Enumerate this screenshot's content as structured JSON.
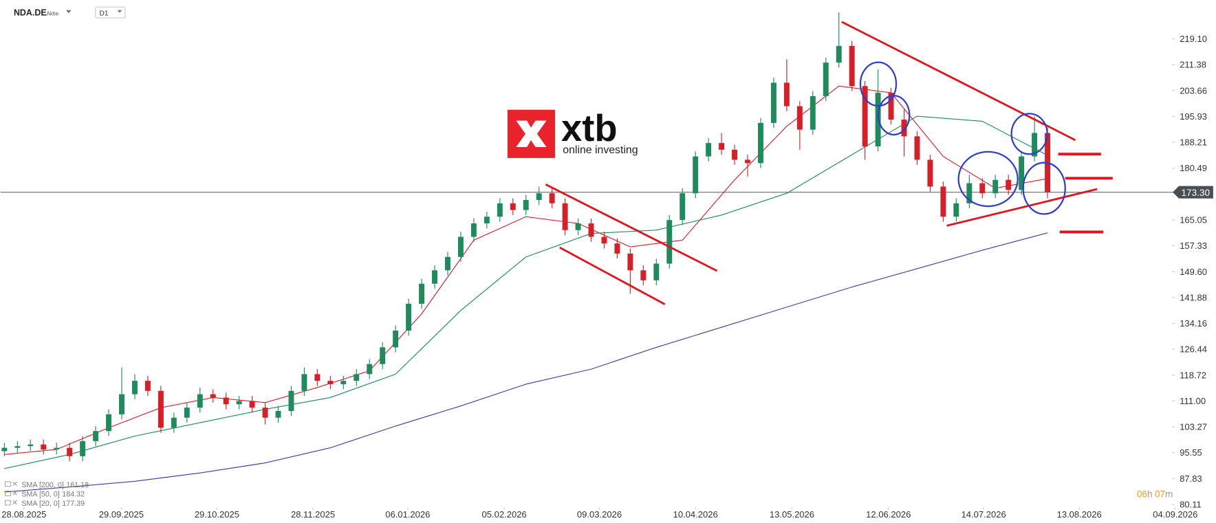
{
  "chart_data": {
    "type": "candlestick",
    "symbol": "NDA.DE",
    "instrument_type": "Aktie",
    "timeframe": "D1",
    "branding": {
      "name": "xtb",
      "tagline": "online investing"
    },
    "countdown": {
      "hours": "06",
      "hours_unit": "h",
      "minutes": "07",
      "minutes_unit": "m"
    },
    "up_color": "#1f8a5b",
    "down_color": "#d81e27",
    "candles": {
      "x": [
        0,
        3,
        6,
        9,
        12,
        15,
        18,
        21,
        24,
        27,
        30,
        33,
        36,
        39,
        42,
        45,
        48,
        51,
        54,
        57,
        60,
        63,
        66,
        69,
        72,
        75,
        78,
        81,
        84,
        87,
        90,
        93,
        96,
        99,
        102,
        105,
        108,
        111,
        114,
        117,
        120,
        123,
        126,
        129,
        132,
        135,
        138,
        141,
        144,
        147,
        150,
        153,
        156,
        159,
        162,
        165,
        168,
        171,
        174,
        177,
        180,
        183,
        186,
        189,
        192,
        195,
        198,
        201,
        204,
        207,
        210,
        213,
        216,
        219,
        222,
        225,
        228,
        231,
        234,
        237,
        240
      ],
      "ohlc": [
        [
          96,
          98.5,
          94.5,
          97
        ],
        [
          97,
          99,
          95.5,
          97.5
        ],
        [
          97.5,
          99.5,
          96,
          98
        ],
        [
          98,
          99.5,
          95,
          96.5
        ],
        [
          96.5,
          98.5,
          95,
          97
        ],
        [
          97,
          98.5,
          93,
          94.5
        ],
        [
          94.5,
          100.5,
          93,
          99
        ],
        [
          99,
          103.5,
          97.5,
          102
        ],
        [
          102,
          108.5,
          100.5,
          107
        ],
        [
          107,
          121,
          105.5,
          113
        ],
        [
          113,
          119,
          111.5,
          117
        ],
        [
          117,
          118.5,
          112.5,
          114
        ],
        [
          114,
          115.5,
          101.5,
          103
        ],
        [
          103,
          107.5,
          101.5,
          106
        ],
        [
          106,
          110.5,
          104.5,
          109
        ],
        [
          109,
          115,
          107.5,
          113
        ],
        [
          113,
          114.5,
          110.5,
          112
        ],
        [
          112,
          113.5,
          108.5,
          110
        ],
        [
          110,
          112.5,
          108.5,
          111
        ],
        [
          111,
          112.5,
          107.5,
          109
        ],
        [
          109,
          110.5,
          104,
          106
        ],
        [
          106,
          109.5,
          104.5,
          108
        ],
        [
          108,
          115.5,
          106.5,
          114
        ],
        [
          114,
          121,
          112.5,
          119
        ],
        [
          119,
          120.5,
          115.5,
          117
        ],
        [
          117,
          118.5,
          114.5,
          116
        ],
        [
          116,
          118.5,
          114.5,
          117
        ],
        [
          117,
          120.5,
          115.5,
          119
        ],
        [
          119,
          123.5,
          117.5,
          122
        ],
        [
          122,
          128.5,
          120.5,
          127
        ],
        [
          127,
          133.5,
          125.5,
          132
        ],
        [
          132,
          141.5,
          130.5,
          140
        ],
        [
          140,
          147.5,
          138.5,
          146
        ],
        [
          146,
          151.5,
          144.5,
          150
        ],
        [
          150,
          155.5,
          148.5,
          154
        ],
        [
          154,
          161.5,
          152.5,
          160
        ],
        [
          160,
          165.5,
          158.5,
          164
        ],
        [
          164,
          167.5,
          162.5,
          166
        ],
        [
          166,
          171.5,
          164.5,
          170
        ],
        [
          170,
          171.5,
          166.5,
          168
        ],
        [
          168,
          172.5,
          166.5,
          171
        ],
        [
          171,
          175,
          169.5,
          173
        ],
        [
          173,
          174.5,
          168.5,
          170
        ],
        [
          170,
          171.5,
          160.5,
          162
        ],
        [
          162,
          165.5,
          160.5,
          164
        ],
        [
          164,
          165.5,
          158.5,
          160
        ],
        [
          160,
          161.5,
          156.5,
          158
        ],
        [
          158,
          159.5,
          153.5,
          155
        ],
        [
          155,
          156.5,
          143,
          150
        ],
        [
          150,
          151.5,
          145.5,
          147
        ],
        [
          147,
          153.5,
          145.5,
          152
        ],
        [
          152,
          166.5,
          150.5,
          165
        ],
        [
          165,
          174.5,
          163.5,
          173
        ],
        [
          173,
          185.5,
          171.5,
          184
        ],
        [
          184,
          189.5,
          182.5,
          188
        ],
        [
          188,
          191,
          184.5,
          186
        ],
        [
          186,
          187.5,
          181.5,
          183
        ],
        [
          183,
          184.5,
          178,
          182
        ],
        [
          182,
          195.5,
          180.5,
          194
        ],
        [
          194,
          207.5,
          192.5,
          206
        ],
        [
          206,
          213,
          197.5,
          199
        ],
        [
          199,
          200.5,
          186,
          192
        ],
        [
          192,
          203.5,
          190.5,
          202
        ],
        [
          202,
          213.5,
          200.5,
          212
        ],
        [
          212,
          227,
          210.5,
          217
        ],
        [
          217,
          218.5,
          203.5,
          205
        ],
        [
          205,
          206.5,
          183,
          187
        ],
        [
          187,
          210,
          185.5,
          203
        ],
        [
          203,
          204.5,
          193.5,
          195
        ],
        [
          195,
          198,
          184,
          190
        ],
        [
          190,
          191.5,
          181.5,
          183
        ],
        [
          183,
          184.5,
          173.5,
          175
        ],
        [
          175,
          176.5,
          164.5,
          166
        ],
        [
          166,
          171.5,
          164.5,
          170
        ],
        [
          170,
          178.5,
          168.5,
          176
        ],
        [
          176,
          177.5,
          171.5,
          173
        ],
        [
          173,
          178.5,
          171.5,
          177
        ],
        [
          177,
          178.5,
          172.5,
          174
        ],
        [
          174,
          185.5,
          172.5,
          184
        ],
        [
          184,
          196,
          182.5,
          191
        ],
        [
          191,
          192.5,
          171.5,
          173.3
        ]
      ]
    },
    "indicators": [
      {
        "name": "SMA [200, 0]",
        "color": "#3b3f9e",
        "x": [
          0,
          15,
          30,
          45,
          60,
          75,
          90,
          105,
          120,
          135,
          150,
          165,
          180,
          195,
          210,
          225,
          240
        ],
        "values": [
          83.8,
          85.3,
          87,
          89.5,
          92.5,
          97,
          103.5,
          109.5,
          116,
          120.5,
          127,
          133,
          139,
          145,
          150.5,
          156,
          161.18
        ]
      },
      {
        "name": "SMA [50, 0]",
        "color": "#1f8a5b",
        "x": [
          0,
          15,
          30,
          45,
          60,
          75,
          90,
          105,
          120,
          135,
          150,
          165,
          180,
          195,
          210,
          225,
          240
        ],
        "values": [
          90.8,
          95,
          100.5,
          104.5,
          108.5,
          112,
          119,
          138,
          154,
          161,
          162,
          166.5,
          173,
          184.5,
          196,
          194.5,
          184.32
        ]
      },
      {
        "name": "SMA [20, 0]",
        "color": "#d81e27",
        "x": [
          0,
          12,
          24,
          36,
          48,
          60,
          72,
          84,
          96,
          108,
          120,
          132,
          144,
          156,
          168,
          180,
          192,
          204,
          216,
          228,
          240
        ],
        "values": [
          95,
          96.5,
          103,
          109,
          112,
          110.5,
          115,
          120,
          137,
          159,
          166,
          164,
          157,
          159,
          177,
          193,
          205,
          203,
          184,
          174.5,
          177.39
        ]
      }
    ],
    "last_price": {
      "value": 173.3,
      "label": "173.30"
    },
    "xlim": [
      -0.9,
      267.9
    ],
    "xticks": [
      {
        "value": 4.5,
        "label": "28.08.2025"
      },
      {
        "value": 26.9,
        "label": "29.09.2025"
      },
      {
        "value": 48.9,
        "label": "29.10.2025"
      },
      {
        "value": 71,
        "label": "28.11.2025"
      },
      {
        "value": 92.8,
        "label": "06.01.2026"
      },
      {
        "value": 115,
        "label": "05.02.2026"
      },
      {
        "value": 136.9,
        "label": "09.03.2026"
      },
      {
        "value": 159,
        "label": "10.04.2026"
      },
      {
        "value": 181.2,
        "label": "13.05.2026"
      },
      {
        "value": 203.4,
        "label": "12.06.2026"
      },
      {
        "value": 225.3,
        "label": "14.07.2026"
      },
      {
        "value": 247.3,
        "label": "13.08.2026"
      },
      {
        "value": 269.4,
        "label": "04.09.2026"
      }
    ],
    "ylim": [
      79.2,
      230.7
    ],
    "yticks": [
      {
        "value": 219.1,
        "label": "219.10"
      },
      211.38,
      203.66,
      195.93,
      188.21,
      180.49,
      165.05,
      157.33,
      {
        "value": 149.6,
        "label": "149.60"
      },
      141.88,
      134.16,
      126.44,
      118.72,
      {
        "value": 111,
        "label": "111.00"
      },
      103.27,
      95.55,
      87.83,
      80.11
    ]
  }
}
